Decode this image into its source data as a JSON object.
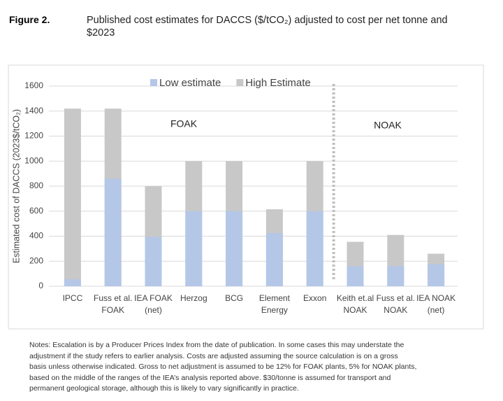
{
  "figure_label": "Figure 2.",
  "chart_data": {
    "type": "overlap-bar",
    "title": "Published cost estimates for DACCS ($/tCO₂) adjusted to cost per net tonne and $2023",
    "y_label": "Estimated cost of DACCS (2023$/tCO₂)",
    "categories": [
      [
        "IPCC"
      ],
      [
        "Fuss et al.",
        "FOAK"
      ],
      [
        "IEA FOAK",
        "(net)"
      ],
      [
        "Herzog"
      ],
      [
        "BCG"
      ],
      [
        "Element",
        "Energy"
      ],
      [
        "Exxon"
      ],
      [
        "Keith et.al",
        "NOAK"
      ],
      [
        "Fuss et al.",
        "NOAK"
      ],
      [
        "IEA NOAK",
        "(net)"
      ]
    ],
    "series": [
      {
        "name": "High Estimate",
        "color": "#c8c8c8",
        "values": [
          1420,
          1420,
          800,
          1000,
          1000,
          615,
          1000,
          355,
          410,
          260
        ]
      },
      {
        "name": "Low estimate",
        "color": "#b4c7e7",
        "values": [
          55,
          860,
          395,
          600,
          600,
          425,
          600,
          160,
          160,
          175
        ]
      }
    ],
    "ylim": [
      0,
      1600
    ],
    "yticks": [
      0,
      200,
      400,
      600,
      800,
      1000,
      1200,
      1400,
      1600
    ],
    "grid": true,
    "annotations": [
      "FOAK",
      "NOAK"
    ]
  },
  "notes": [
    "Notes: Escalation is by a Producer Prices Index from the date of publication. In some cases this may understate the",
    "adjustment if the study refers to earlier analysis. Costs are adjusted assuming the source calculation is on a gross",
    "basis unless otherwise indicated. Gross to net adjustment is assumed to be 12% for FOAK plants, 5% for NOAK plants,",
    "based on the middle of the ranges of the IEA’s analysis reported above. $30/tonne is assumed for transport and",
    "permanent geological storage, although this is likely to vary significantly in practice."
  ]
}
